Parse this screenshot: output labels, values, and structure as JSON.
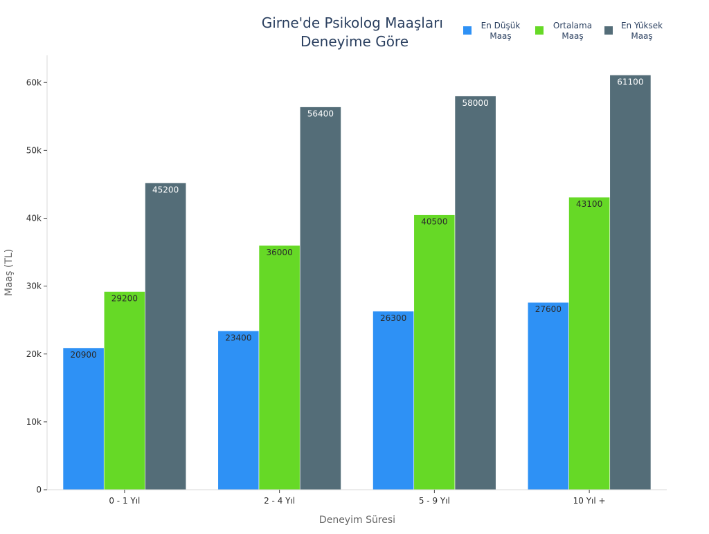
{
  "chart_data": {
    "type": "bar",
    "title_lines": [
      "Girne'de Psikolog Maaşları",
      "Deneyime Göre"
    ],
    "xlabel": "Deneyim Süresi",
    "ylabel": "Maaş (TL)",
    "categories": [
      "0 - 1 Yıl",
      "2 - 4 Yıl",
      "5 - 9 Yıl",
      "10 Yıl +"
    ],
    "ylim": [
      0,
      64000
    ],
    "yticks": [
      0,
      10000,
      20000,
      30000,
      40000,
      50000,
      60000
    ],
    "ytick_labels": [
      "0",
      "10k",
      "20k",
      "30k",
      "40k",
      "50k",
      "60k"
    ],
    "legend_position": "top-right",
    "series": [
      {
        "name_lines": [
          "En Düşük",
          "Maaş"
        ],
        "color": "#2e91f5",
        "label_color": "#2a2a2a",
        "values": [
          20900,
          23400,
          26300,
          27600
        ]
      },
      {
        "name_lines": [
          "Ortalama",
          "Maaş"
        ],
        "color": "#66d926",
        "label_color": "#2a2a2a",
        "values": [
          29200,
          36000,
          40500,
          43100
        ]
      },
      {
        "name_lines": [
          "En Yüksek",
          "Maaş"
        ],
        "color": "#546d78",
        "label_color": "#ffffff",
        "values": [
          45200,
          56400,
          58000,
          61100
        ]
      }
    ]
  }
}
